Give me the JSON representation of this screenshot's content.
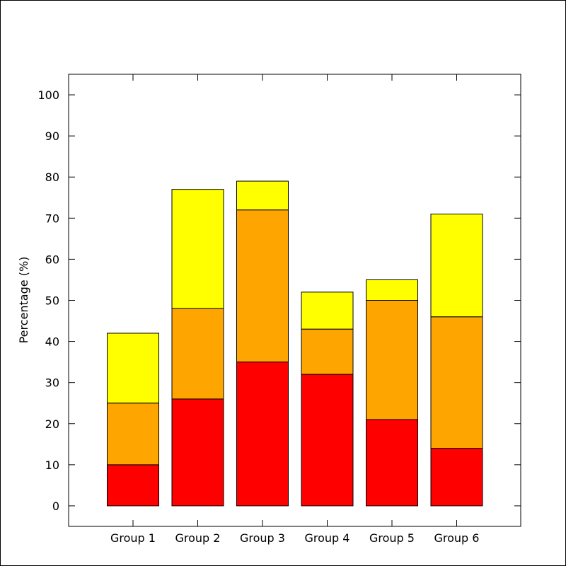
{
  "chart_data": {
    "type": "bar",
    "stacked": true,
    "title": "",
    "xlabel": "",
    "ylabel": "Percentage (%)",
    "ylim": [
      -5,
      105
    ],
    "yticks": [
      0,
      10,
      20,
      30,
      40,
      50,
      60,
      70,
      80,
      90,
      100
    ],
    "grid": false,
    "legend": "none",
    "categories": [
      "Group 1",
      "Group 2",
      "Group 3",
      "Group 4",
      "Group 5",
      "Group 6"
    ],
    "series": [
      {
        "color": "#ff0000",
        "values": [
          10,
          26,
          35,
          32,
          21,
          14
        ]
      },
      {
        "color": "#ffa500",
        "values": [
          15,
          22,
          37,
          11,
          29,
          32
        ]
      },
      {
        "color": "#ffff00",
        "values": [
          17,
          29,
          7,
          9,
          5,
          25
        ]
      }
    ]
  }
}
